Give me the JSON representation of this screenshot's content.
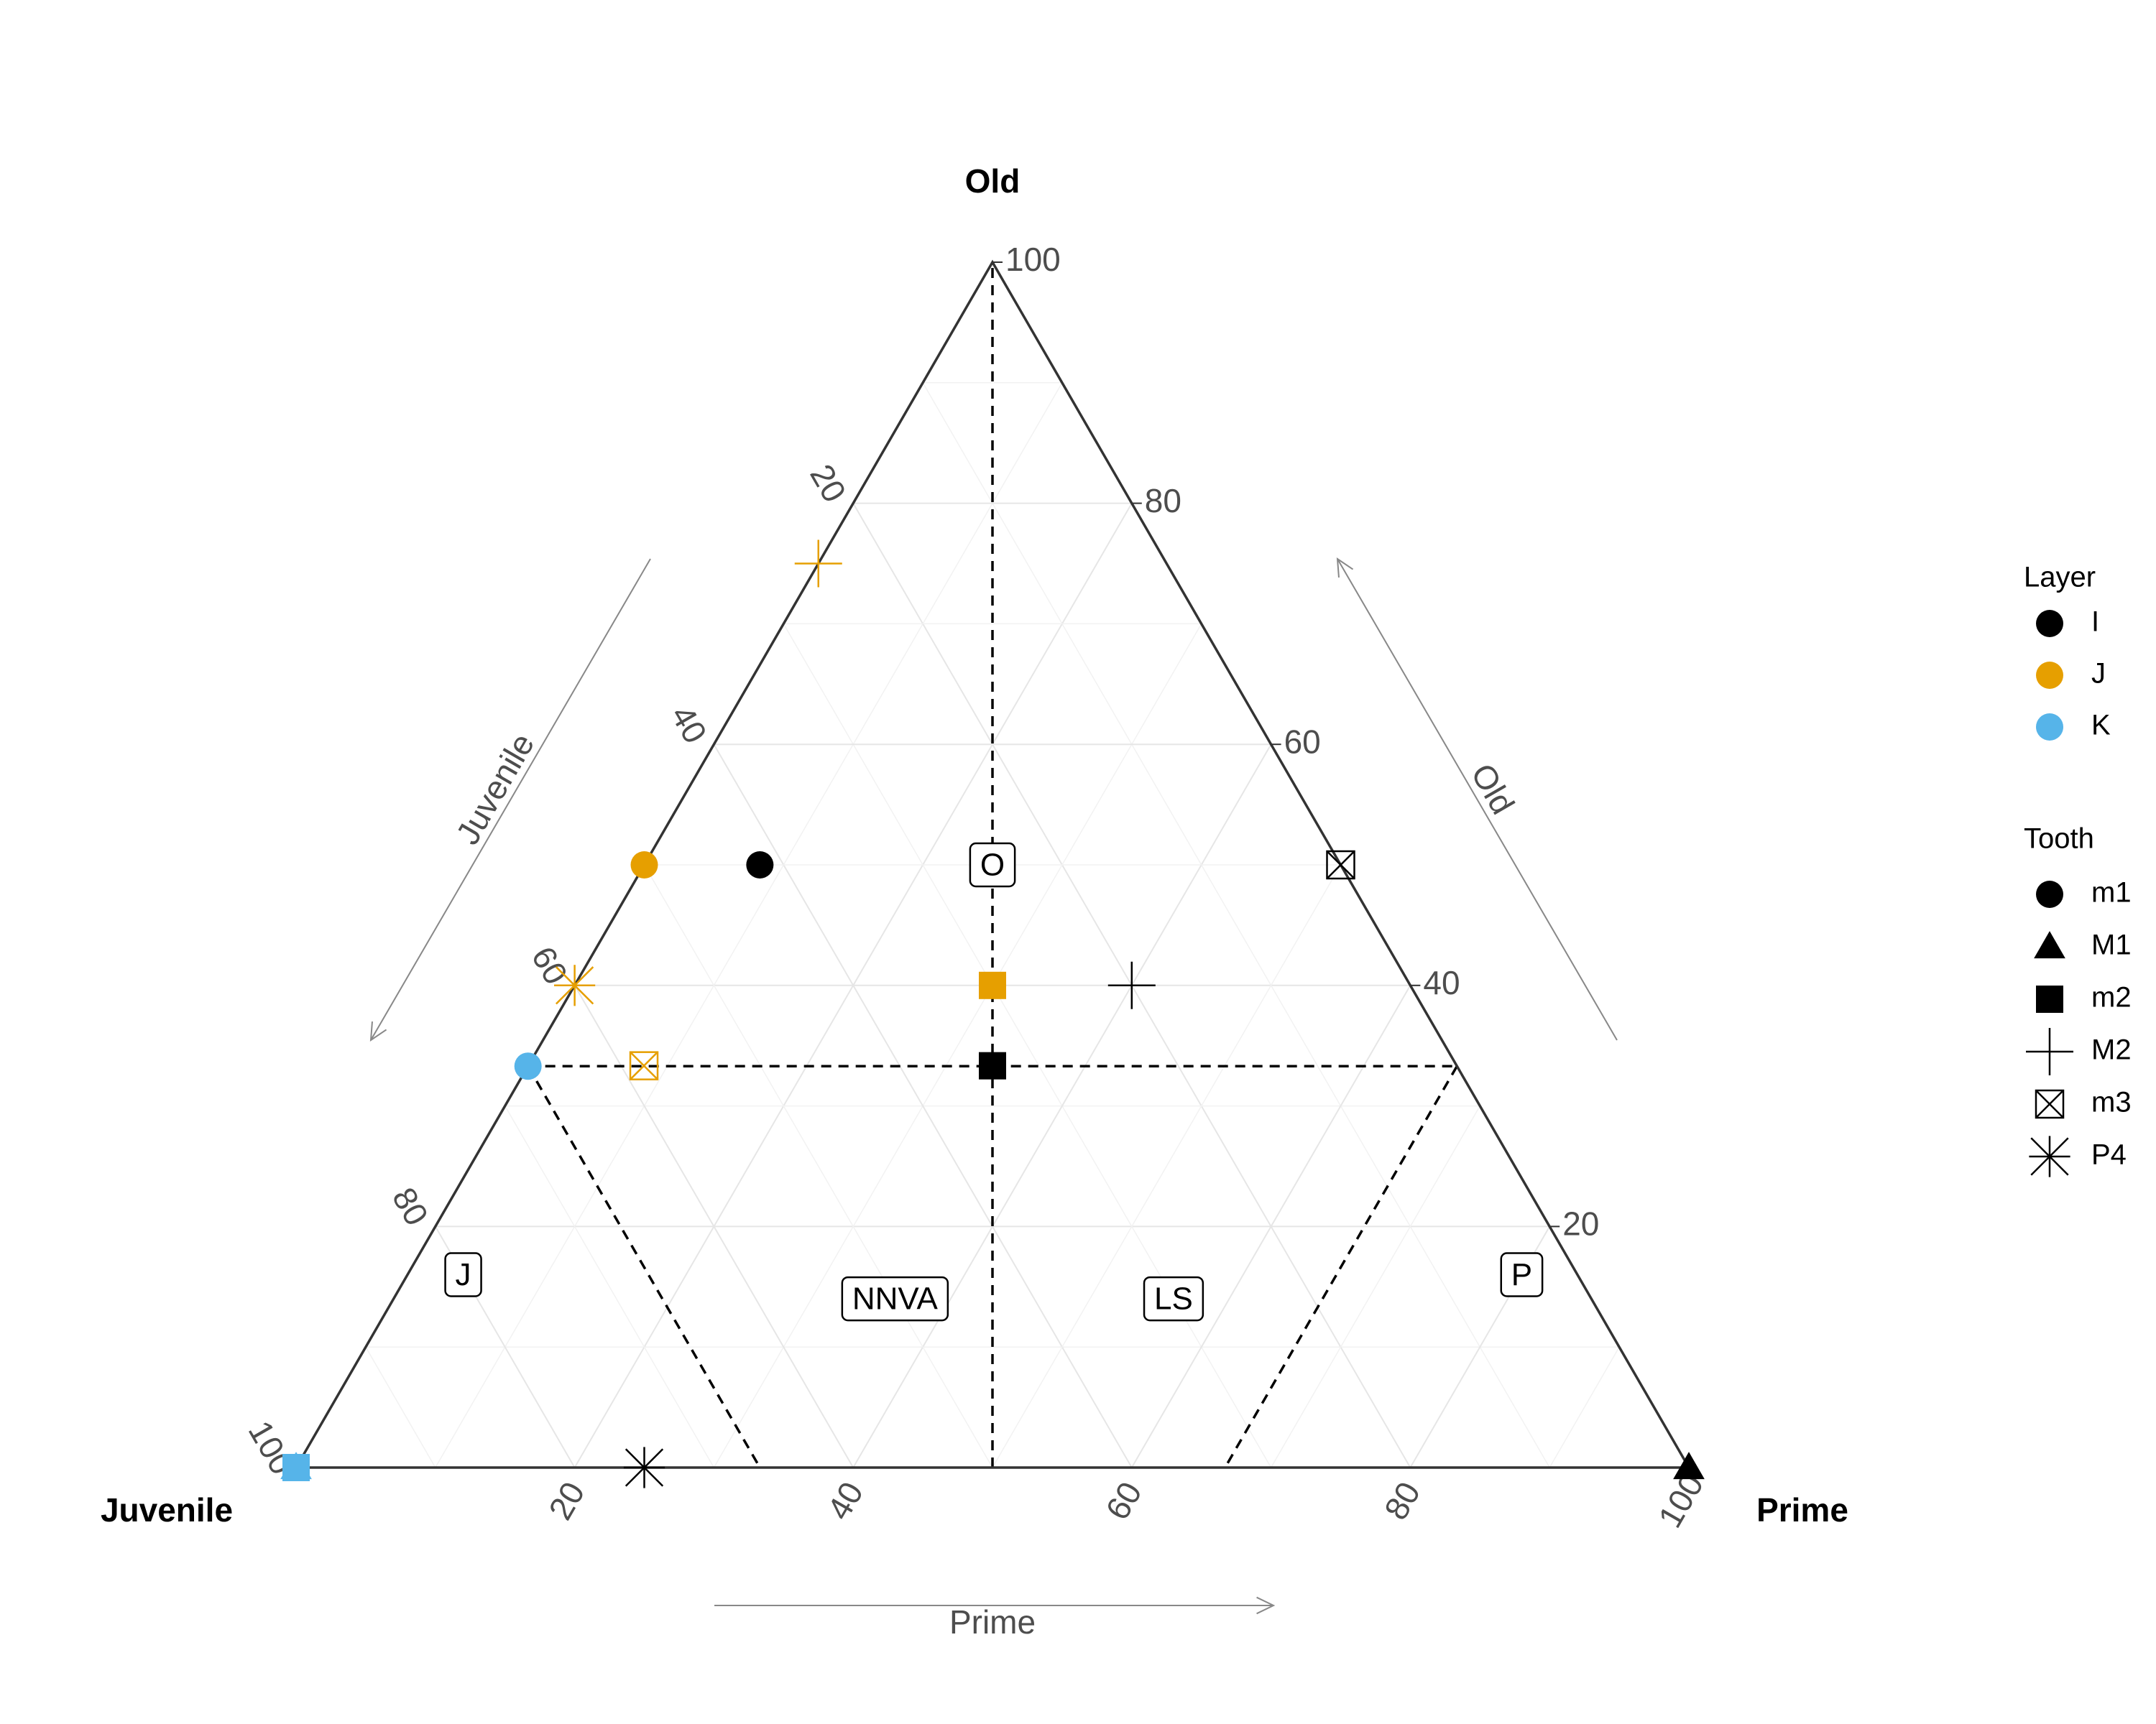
{
  "chart_data": {
    "type": "ternary-scatter",
    "axes": {
      "top": "Old",
      "left": "Juvenile",
      "right": "Prime"
    },
    "arrow_labels": {
      "left": "Juvenile",
      "right": "Old",
      "bottom": "Prime"
    },
    "ticks": {
      "old": [
        20,
        40,
        60,
        80,
        100
      ],
      "juvenile": [
        20,
        40,
        60,
        80,
        100
      ],
      "prime": [
        20,
        40,
        60,
        80,
        100
      ]
    },
    "regions": [
      {
        "label": "O",
        "juvenile": 25,
        "prime": 25,
        "old": 50
      },
      {
        "label": "J",
        "juvenile": 80,
        "prime": 4,
        "old": 16
      },
      {
        "label": "NNVA",
        "juvenile": 50,
        "prime": 36,
        "old": 14
      },
      {
        "label": "LS",
        "juvenile": 30,
        "prime": 56,
        "old": 14
      },
      {
        "label": "P",
        "juvenile": 4,
        "prime": 80,
        "old": 16
      }
    ],
    "legend": {
      "layer_title": "Layer",
      "layers": [
        {
          "name": "I",
          "color": "#000000"
        },
        {
          "name": "J",
          "color": "#E69F00"
        },
        {
          "name": "K",
          "color": "#56B4E9"
        }
      ],
      "tooth_title": "Tooth",
      "teeth": [
        {
          "name": "m1",
          "shape": "circle"
        },
        {
          "name": "M1",
          "shape": "triangle"
        },
        {
          "name": "m2",
          "shape": "square"
        },
        {
          "name": "M2",
          "shape": "plus"
        },
        {
          "name": "m3",
          "shape": "boxx"
        },
        {
          "name": "P4",
          "shape": "asterisk"
        }
      ]
    },
    "points": [
      {
        "layer": "I",
        "tooth": "m1",
        "juvenile": 41.7,
        "prime": 8.3,
        "old": 50
      },
      {
        "layer": "I",
        "tooth": "m2",
        "juvenile": 33.3,
        "prime": 33.3,
        "old": 33.3
      },
      {
        "layer": "I",
        "tooth": "M2",
        "juvenile": 20,
        "prime": 40,
        "old": 40
      },
      {
        "layer": "I",
        "tooth": "m3",
        "juvenile": 0,
        "prime": 50,
        "old": 50
      },
      {
        "layer": "I",
        "tooth": "P4",
        "juvenile": 75,
        "prime": 25,
        "old": 0
      },
      {
        "layer": "I",
        "tooth": "M1",
        "juvenile": 0,
        "prime": 100,
        "old": 0
      },
      {
        "layer": "J",
        "tooth": "m1",
        "juvenile": 50,
        "prime": 0,
        "old": 50
      },
      {
        "layer": "J",
        "tooth": "m2",
        "juvenile": 30,
        "prime": 30,
        "old": 40
      },
      {
        "layer": "J",
        "tooth": "M2",
        "juvenile": 25,
        "prime": 0,
        "old": 75
      },
      {
        "layer": "J",
        "tooth": "m3",
        "juvenile": 58.3,
        "prime": 8.3,
        "old": 33.3
      },
      {
        "layer": "J",
        "tooth": "P4",
        "juvenile": 60,
        "prime": 0,
        "old": 40
      },
      {
        "layer": "K",
        "tooth": "m1",
        "juvenile": 66.7,
        "prime": 0,
        "old": 33.3
      },
      {
        "layer": "K",
        "tooth": "m2",
        "juvenile": 100,
        "prime": 0,
        "old": 0
      },
      {
        "layer": "K",
        "tooth": "M1",
        "juvenile": 100,
        "prime": 0,
        "old": 0
      }
    ],
    "dividers": [
      {
        "from": {
          "juvenile": 50,
          "prime": 50,
          "old": 0
        },
        "to": {
          "juvenile": 0,
          "prime": 0,
          "old": 100
        }
      },
      {
        "from": {
          "juvenile": 66.7,
          "prime": 0,
          "old": 33.3
        },
        "to": {
          "juvenile": 0,
          "prime": 66.7,
          "old": 33.3
        }
      },
      {
        "from": {
          "juvenile": 66.7,
          "prime": 0,
          "old": 33.3
        },
        "to": {
          "juvenile": 66.7,
          "prime": 33.3,
          "old": 0
        }
      },
      {
        "from": {
          "juvenile": 0,
          "prime": 66.7,
          "old": 33.3
        },
        "to": {
          "juvenile": 33.3,
          "prime": 66.7,
          "old": 0
        }
      }
    ],
    "grid": true
  }
}
